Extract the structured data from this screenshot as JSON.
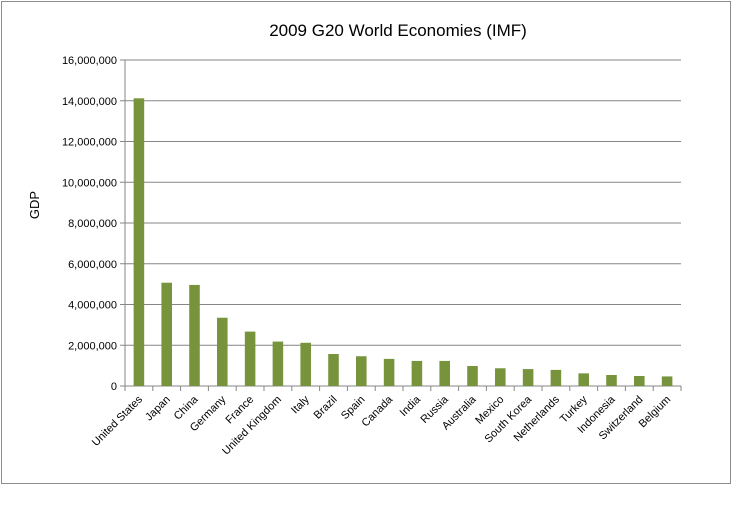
{
  "chart_data": {
    "type": "bar",
    "title": "2009 G20 World Economies  (IMF)",
    "ylabel": "GDP",
    "xlabel": "",
    "ylim": [
      0,
      16000000
    ],
    "yticks": [
      0,
      2000000,
      4000000,
      6000000,
      8000000,
      10000000,
      12000000,
      14000000,
      16000000
    ],
    "ytick_labels": [
      "0",
      "2,000,000",
      "4,000,000",
      "6,000,000",
      "8,000,000",
      "10,000,000",
      "12,000,000",
      "14,000,000",
      "16,000,000"
    ],
    "grid": true,
    "legend": "none",
    "bar_color": "#77933c",
    "categories": [
      "United States",
      "Japan",
      "China",
      "Germany",
      "France",
      "United Kingdom",
      "Italy",
      "Brazil",
      "Spain",
      "Canada",
      "India",
      "Russia",
      "Australia",
      "Mexico",
      "South Korea",
      "Netherlands",
      "Turkey",
      "Indonesia",
      "Switzerland",
      "Belgium"
    ],
    "values": [
      14120000,
      5070000,
      4960000,
      3350000,
      2670000,
      2180000,
      2120000,
      1570000,
      1460000,
      1330000,
      1230000,
      1230000,
      980000,
      870000,
      830000,
      790000,
      620000,
      540000,
      490000,
      470000
    ]
  }
}
